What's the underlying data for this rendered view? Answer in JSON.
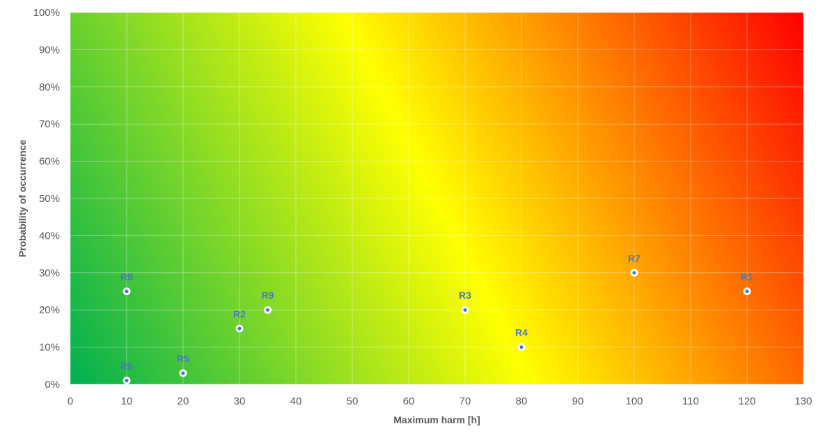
{
  "chart_data": {
    "type": "scatter",
    "title": "",
    "xlabel": "Maximum harm [h]",
    "ylabel": "Probability of occurrence",
    "xlim": [
      0,
      130
    ],
    "ylim": [
      0,
      100
    ],
    "x_ticks": [
      0,
      10,
      20,
      30,
      40,
      50,
      60,
      70,
      80,
      90,
      100,
      110,
      120,
      130
    ],
    "y_ticks": [
      0,
      10,
      20,
      30,
      40,
      50,
      60,
      70,
      80,
      90,
      100
    ],
    "y_tick_labels": [
      "0%",
      "10%",
      "20%",
      "30%",
      "40%",
      "50%",
      "60%",
      "70%",
      "80%",
      "90%",
      "100%"
    ],
    "grid": true,
    "legend": "none",
    "background_gradient": {
      "description": "diagonal risk gradient from bottom-left to top-right",
      "colors": [
        "#00b050",
        "#ffff00",
        "#ff0000"
      ]
    },
    "marker_color": "#4a7ab5",
    "points": [
      {
        "label": "R1",
        "x": 120,
        "y": 25
      },
      {
        "label": "R2",
        "x": 30,
        "y": 15
      },
      {
        "label": "R3",
        "x": 70,
        "y": 20
      },
      {
        "label": "R4",
        "x": 80,
        "y": 10
      },
      {
        "label": "R5",
        "x": 20,
        "y": 3
      },
      {
        "label": "R6",
        "x": 10,
        "y": 1
      },
      {
        "label": "R7",
        "x": 100,
        "y": 30
      },
      {
        "label": "R8",
        "x": 10,
        "y": 25
      },
      {
        "label": "R9",
        "x": 35,
        "y": 20
      }
    ]
  }
}
